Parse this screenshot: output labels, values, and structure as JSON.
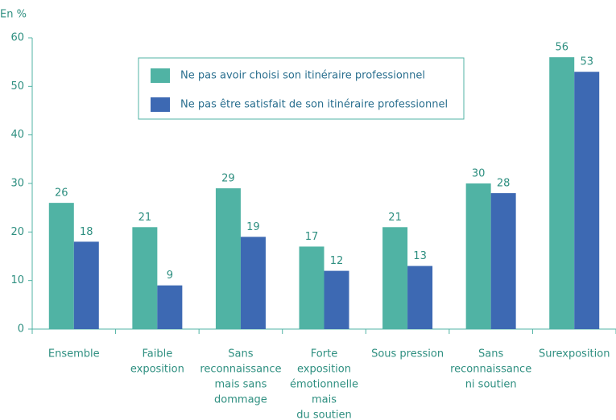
{
  "chart_data": {
    "type": "bar",
    "y_label": "En %",
    "categories": [
      [
        "Ensemble"
      ],
      [
        "Faible",
        "exposition"
      ],
      [
        "Sans",
        "reconnaissance",
        "mais sans",
        "dommage"
      ],
      [
        "Forte",
        "exposition",
        "émotionnelle",
        "mais",
        "du soutien"
      ],
      [
        "Sous pression"
      ],
      [
        "Sans",
        "reconnaissance",
        "ni soutien"
      ],
      [
        "Surexposition"
      ]
    ],
    "series": [
      {
        "name": "Ne pas avoir choisi son itinéraire professionnel",
        "color": "#50b3a4",
        "values": [
          26,
          21,
          29,
          17,
          21,
          30,
          56
        ]
      },
      {
        "name": "Ne pas être satisfait de son itinéraire professionnel",
        "color": "#3d69b3",
        "values": [
          18,
          9,
          19,
          12,
          13,
          28,
          53
        ]
      }
    ],
    "ylim": [
      0,
      60
    ],
    "yticks": [
      0,
      10,
      20,
      30,
      40,
      50,
      60
    ],
    "grid": false
  }
}
